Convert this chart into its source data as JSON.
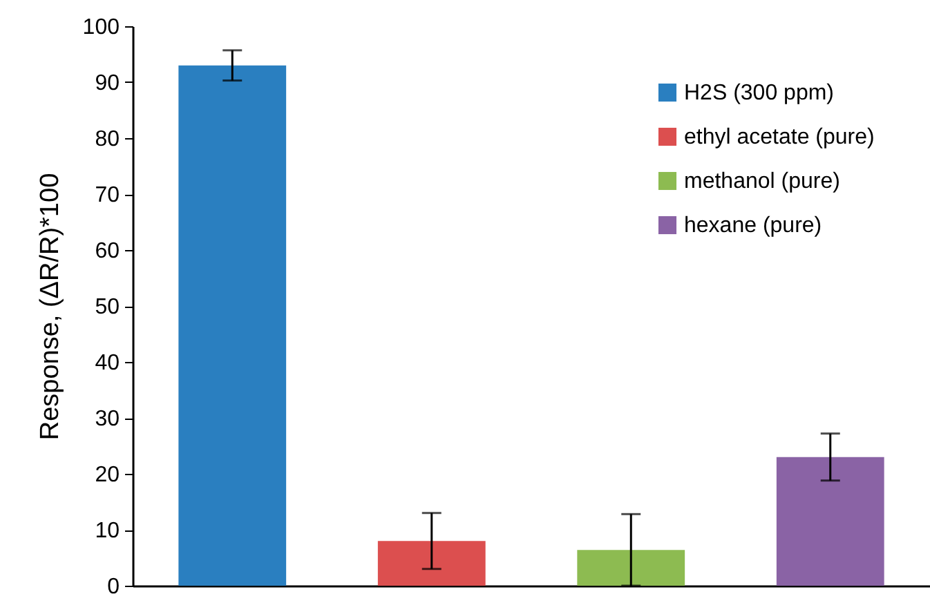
{
  "chart_data": {
    "type": "bar",
    "ylabel": "Response, (ΔR/R)*100",
    "categories": [
      null,
      null,
      null,
      null
    ],
    "series": [
      {
        "name": "H2S (300 ppm)",
        "color": "#2a7fc0",
        "values": [
          93,
          null,
          null,
          null
        ],
        "errors": [
          2.7,
          null,
          null,
          null
        ]
      },
      {
        "name": "ethyl acetate (pure)",
        "color": "#dc4f4f",
        "values": [
          null,
          8,
          null,
          null
        ],
        "errors": [
          null,
          5,
          null,
          null
        ]
      },
      {
        "name": "methanol (pure)",
        "color": "#8dbb51",
        "values": [
          null,
          null,
          6.4,
          null
        ],
        "errors": [
          null,
          null,
          6.4,
          null
        ]
      },
      {
        "name": "hexane (pure)",
        "color": "#8a63a5",
        "values": [
          null,
          null,
          null,
          23
        ],
        "errors": [
          null,
          null,
          null,
          4.2
        ]
      }
    ],
    "ylim": [
      0,
      100
    ],
    "yticks": [
      0,
      10,
      20,
      30,
      40,
      50,
      60,
      70,
      80,
      90,
      100
    ],
    "grid": false,
    "legend": "top right"
  }
}
